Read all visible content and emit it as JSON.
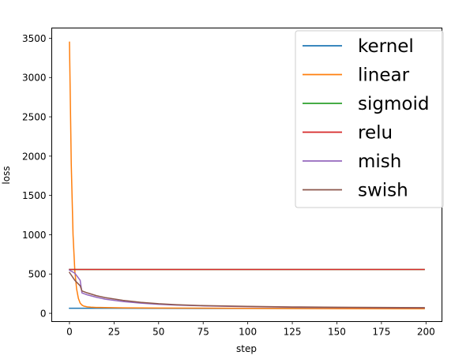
{
  "chart_data": {
    "type": "line",
    "xlabel": "step",
    "ylabel": "loss",
    "xlim": [
      -9.95,
      208.95
    ],
    "ylim": [
      -105,
      3630
    ],
    "xticks": [
      0,
      25,
      50,
      75,
      100,
      125,
      150,
      175,
      200
    ],
    "yticks": [
      0,
      500,
      1000,
      1500,
      2000,
      2500,
      3000,
      3500
    ],
    "grid": false,
    "legend_position": "top-right",
    "series": [
      {
        "name": "kernel",
        "color": "#1f77b4",
        "x": [
          0,
          10,
          25,
          50,
          100,
          150,
          199
        ],
        "y": [
          65,
          64,
          64,
          63,
          62,
          62,
          62
        ]
      },
      {
        "name": "linear",
        "color": "#ff7f0e",
        "x": [
          0,
          1,
          2,
          3,
          4,
          5,
          6,
          7,
          8,
          10,
          12,
          15,
          20,
          30,
          50,
          100,
          150,
          199
        ],
        "y": [
          3450,
          1900,
          1000,
          540,
          310,
          190,
          130,
          105,
          92,
          82,
          78,
          75,
          73,
          70,
          67,
          63,
          60,
          58
        ]
      },
      {
        "name": "sigmoid",
        "color": "#2ca02c",
        "x": [
          0,
          199
        ],
        "y": [
          558,
          558
        ]
      },
      {
        "name": "relu",
        "color": "#d62728",
        "x": [
          0,
          199
        ],
        "y": [
          558,
          558
        ]
      },
      {
        "name": "mish",
        "color": "#9467bd",
        "x": [
          0,
          3,
          6,
          7,
          10,
          15,
          20,
          30,
          40,
          50,
          60,
          75,
          100,
          125,
          150,
          175,
          199
        ],
        "y": [
          550,
          510,
          420,
          260,
          235,
          205,
          180,
          150,
          130,
          115,
          105,
          95,
          85,
          78,
          74,
          71,
          69
        ]
      },
      {
        "name": "swish",
        "color": "#8c564b",
        "x": [
          0,
          3,
          6,
          7,
          10,
          15,
          20,
          30,
          40,
          50,
          60,
          75,
          100,
          125,
          150,
          175,
          199
        ],
        "y": [
          520,
          420,
          350,
          285,
          260,
          225,
          200,
          165,
          140,
          122,
          110,
          98,
          88,
          81,
          77,
          74,
          72
        ]
      }
    ]
  }
}
